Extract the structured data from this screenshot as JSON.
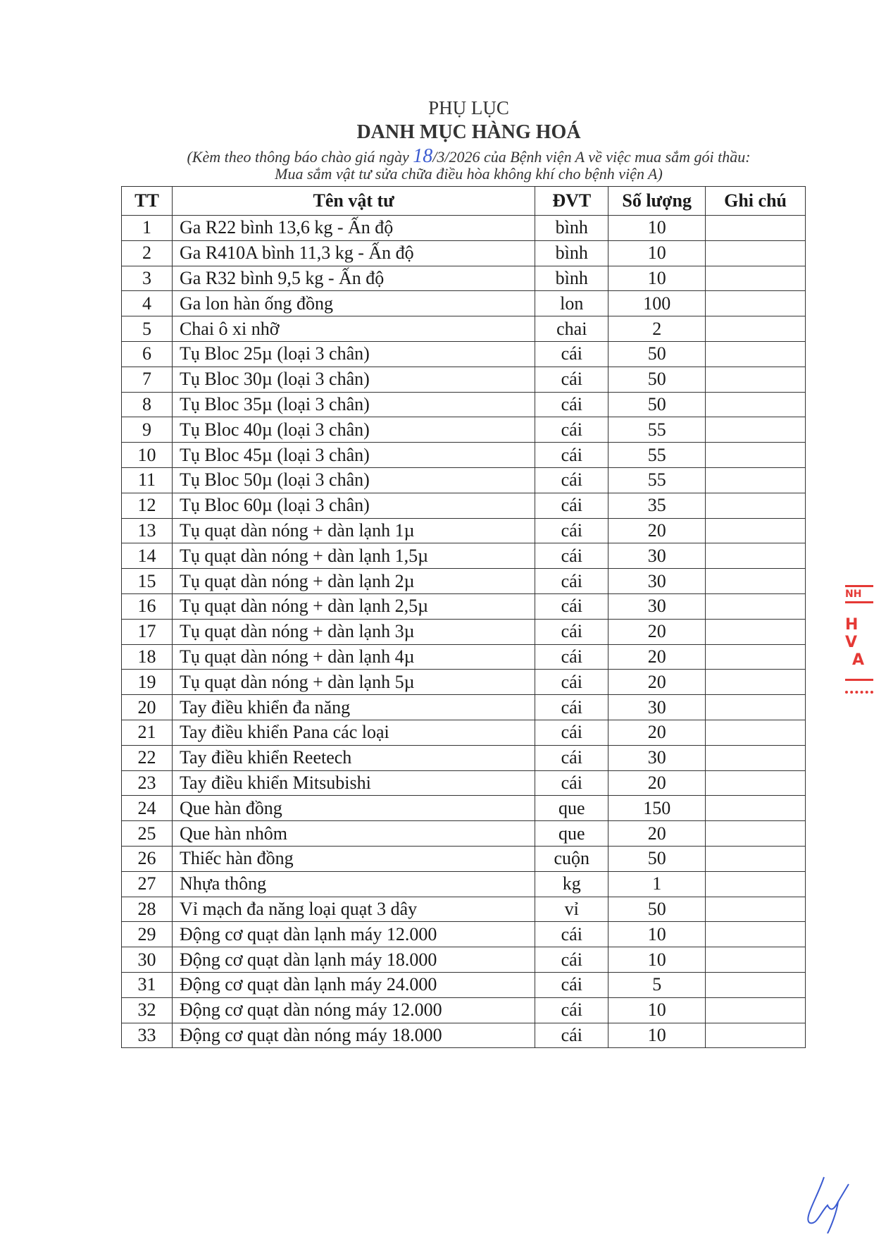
{
  "header": {
    "title": "PHỤ LỤC",
    "heading": "DANH MỤC HÀNG HOÁ",
    "subtitle_prefix": "(Kèm theo thông báo chào giá ngày ",
    "subtitle_day": "18",
    "subtitle_suffix": "/3/2026 của Bệnh viện A về việc mua sắm gói thầu:",
    "subtitle_line2": "Mua sắm vật tư sửa chữa điều hòa không khí cho bệnh viện A)"
  },
  "table": {
    "columns": [
      "TT",
      "Tên vật tư",
      "ĐVT",
      "Số lượng",
      "Ghi chú"
    ],
    "rows": [
      [
        "1",
        "Ga R22 bình 13,6 kg - Ấn độ",
        "bình",
        "10",
        ""
      ],
      [
        "2",
        "Ga R410A bình 11,3 kg - Ấn độ",
        "bình",
        "10",
        ""
      ],
      [
        "3",
        "Ga R32 bình 9,5 kg - Ấn độ",
        "bình",
        "10",
        ""
      ],
      [
        "4",
        "Ga lon hàn ống đồng",
        "lon",
        "100",
        ""
      ],
      [
        "5",
        "Chai ô xi nhỡ",
        "chai",
        "2",
        ""
      ],
      [
        "6",
        "Tụ Bloc 25µ (loại 3 chân)",
        "cái",
        "50",
        ""
      ],
      [
        "7",
        "Tụ Bloc 30µ (loại 3 chân)",
        "cái",
        "50",
        ""
      ],
      [
        "8",
        "Tụ Bloc 35µ (loại 3 chân)",
        "cái",
        "50",
        ""
      ],
      [
        "9",
        "Tụ Bloc 40µ (loại 3 chân)",
        "cái",
        "55",
        ""
      ],
      [
        "10",
        "Tụ Bloc 45µ (loại 3 chân)",
        "cái",
        "55",
        ""
      ],
      [
        "11",
        "Tụ Bloc 50µ (loại 3 chân)",
        "cái",
        "55",
        ""
      ],
      [
        "12",
        "Tụ Bloc 60µ (loại 3 chân)",
        "cái",
        "35",
        ""
      ],
      [
        "13",
        "Tụ quạt dàn nóng + dàn lạnh 1µ",
        "cái",
        "20",
        ""
      ],
      [
        "14",
        "Tụ quạt dàn nóng + dàn lạnh 1,5µ",
        "cái",
        "30",
        ""
      ],
      [
        "15",
        "Tụ quạt dàn nóng + dàn lạnh 2µ",
        "cái",
        "30",
        ""
      ],
      [
        "16",
        "Tụ quạt dàn nóng + dàn lạnh 2,5µ",
        "cái",
        "30",
        ""
      ],
      [
        "17",
        "Tụ quạt dàn nóng + dàn lạnh 3µ",
        "cái",
        "20",
        ""
      ],
      [
        "18",
        "Tụ quạt dàn nóng + dàn lạnh 4µ",
        "cái",
        "20",
        ""
      ],
      [
        "19",
        "Tụ quạt dàn nóng + dàn lạnh 5µ",
        "cái",
        "20",
        ""
      ],
      [
        "20",
        "Tay điều khiển đa năng",
        "cái",
        "30",
        ""
      ],
      [
        "21",
        "Tay điều khiển Pana các loại",
        "cái",
        "20",
        ""
      ],
      [
        "22",
        "Tay điều khiển Reetech",
        "cái",
        "30",
        ""
      ],
      [
        "23",
        "Tay điều khiển Mitsubishi",
        "cái",
        "20",
        ""
      ],
      [
        "24",
        "Que hàn đồng",
        "que",
        "150",
        ""
      ],
      [
        "25",
        "Que hàn nhôm",
        "que",
        "20",
        ""
      ],
      [
        "26",
        "Thiếc hàn đồng",
        "cuộn",
        "50",
        ""
      ],
      [
        "27",
        "Nhựa thông",
        "kg",
        "1",
        ""
      ],
      [
        "28",
        "Vỉ mạch đa năng loại quạt 3 dây",
        "vỉ",
        "50",
        ""
      ],
      [
        "29",
        "Động cơ quạt dàn lạnh máy 12.000",
        "cái",
        "10",
        ""
      ],
      [
        "30",
        "Động cơ quạt dàn lạnh máy 18.000",
        "cái",
        "10",
        ""
      ],
      [
        "31",
        "Động cơ quạt dàn lạnh máy 24.000",
        "cái",
        "5",
        ""
      ],
      [
        "32",
        "Động cơ quạt dàn nóng máy 12.000",
        "cái",
        "10",
        ""
      ],
      [
        "33",
        "Động cơ quạt dàn nóng máy 18.000",
        "cái",
        "10",
        ""
      ]
    ]
  },
  "stamp": {
    "color": "#e53935",
    "line1": "NH",
    "line2": "H V",
    "line3": "A"
  },
  "colors": {
    "handwriting": "#3b5bd1"
  }
}
